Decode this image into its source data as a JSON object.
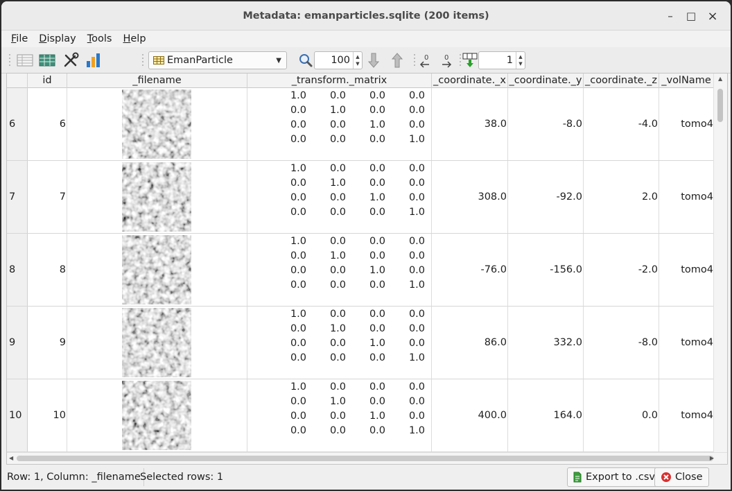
{
  "window": {
    "title": "Metadata: emanparticles.sqlite (200 items)",
    "minimize": "–",
    "maximize": "□",
    "close": "×"
  },
  "menu": {
    "file_u": "F",
    "file_rest": "ile",
    "display_u": "D",
    "display_rest": "isplay",
    "tools_u": "T",
    "tools_rest": "ools",
    "help_u": "H",
    "help_rest": "elp"
  },
  "toolbar": {
    "combo_value": "EmanParticle",
    "zoom_value": "100",
    "goto_value": "1"
  },
  "columns": [
    "id",
    "_filename",
    "_transform._matrix",
    "_coordinate._x",
    "_coordinate._y",
    "_coordinate._z",
    "_volName"
  ],
  "matrix": [
    [
      "1.0",
      "0.0",
      "0.0",
      "0.0"
    ],
    [
      "0.0",
      "1.0",
      "0.0",
      "0.0"
    ],
    [
      "0.0",
      "0.0",
      "1.0",
      "0.0"
    ],
    [
      "0.0",
      "0.0",
      "0.0",
      "1.0"
    ]
  ],
  "rows": [
    {
      "row": "6",
      "id": "6",
      "x": "38.0",
      "y": "-8.0",
      "z": "-4.0",
      "vol": "tomo4"
    },
    {
      "row": "7",
      "id": "7",
      "x": "308.0",
      "y": "-92.0",
      "z": "2.0",
      "vol": "tomo4"
    },
    {
      "row": "8",
      "id": "8",
      "x": "-76.0",
      "y": "-156.0",
      "z": "-2.0",
      "vol": "tomo4"
    },
    {
      "row": "9",
      "id": "9",
      "x": "86.0",
      "y": "332.0",
      "z": "-8.0",
      "vol": "tomo4"
    },
    {
      "row": "10",
      "id": "10",
      "x": "400.0",
      "y": "164.0",
      "z": "0.0",
      "vol": "tomo4"
    }
  ],
  "status": {
    "position": "Row: 1, Column: _filename",
    "selected": "Selected rows: 1"
  },
  "buttons": {
    "export": "Export to .csv",
    "close": "Close"
  }
}
